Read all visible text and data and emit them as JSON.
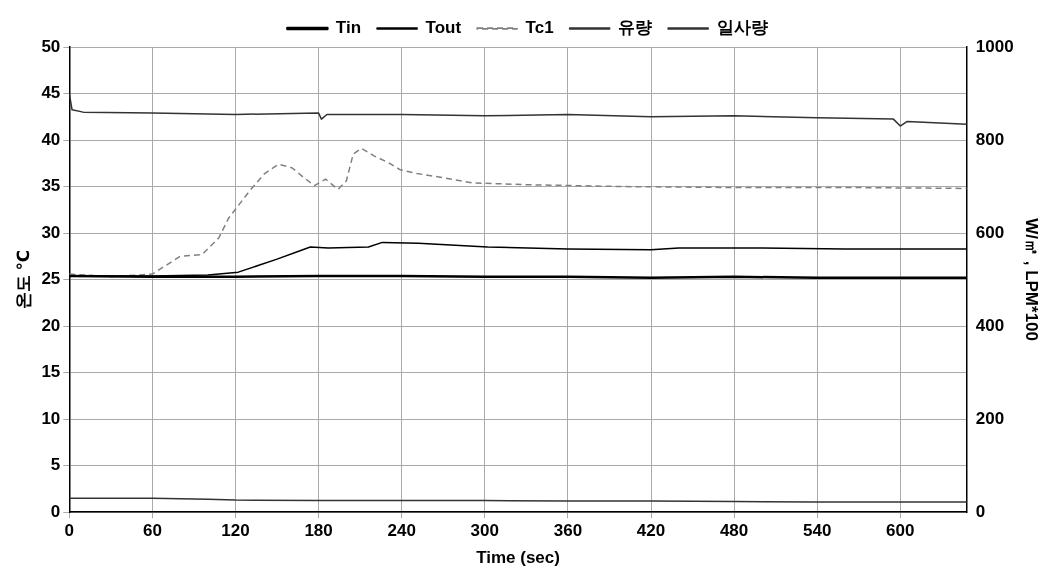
{
  "chart_data": {
    "type": "line",
    "xlabel": "Time (sec)",
    "ylabel": "온도 ℃",
    "y2label": "W/㎡ , LPM*100",
    "xlim": [
      0,
      648
    ],
    "xticks": [
      0,
      60,
      120,
      180,
      240,
      300,
      360,
      420,
      480,
      540,
      600
    ],
    "ylim": [
      0,
      50
    ],
    "yticks": [
      0,
      5,
      10,
      15,
      20,
      25,
      30,
      35,
      40,
      45,
      50
    ],
    "y2lim": [
      0,
      1000
    ],
    "y2ticks": [
      0,
      200,
      400,
      600,
      800,
      1000
    ],
    "grid": true,
    "legend": "top",
    "marker": "none",
    "series": [
      {
        "name": "Tin",
        "color": "#000000",
        "line_style": "solid",
        "x": [
          0,
          60,
          120,
          180,
          240,
          300,
          360,
          420,
          480,
          540,
          600,
          648
        ],
        "values": [
          25.4,
          25.3,
          25.3,
          25.4,
          25.4,
          25.3,
          25.3,
          25.2,
          25.3,
          25.2,
          25.2,
          25.2
        ]
      },
      {
        "name": "Tout",
        "color": "#000000",
        "line_style": "solid",
        "x": [
          0,
          60,
          100,
          122,
          150,
          174,
          187,
          216,
          226,
          252,
          302,
          360,
          420,
          440,
          500,
          560,
          648
        ],
        "values": [
          25.4,
          25.4,
          25.5,
          25.8,
          27.2,
          28.5,
          28.4,
          28.5,
          29.0,
          28.9,
          28.5,
          28.3,
          28.2,
          28.4,
          28.4,
          28.3,
          28.3
        ]
      },
      {
        "name": "Tc1",
        "color": "#808080",
        "line_style": "dashed",
        "x": [
          0,
          30,
          60,
          80,
          96,
          108,
          115,
          130,
          141,
          151,
          161,
          169,
          177,
          185,
          194,
          200,
          205,
          211,
          220,
          230,
          239,
          251,
          268,
          291,
          330,
          400,
          480,
          560,
          648
        ],
        "values": [
          25.6,
          25.3,
          25.6,
          27.5,
          27.7,
          29.5,
          31.6,
          34.5,
          36.4,
          37.4,
          37.0,
          36.0,
          35.1,
          35.8,
          34.7,
          35.6,
          38.5,
          39.1,
          38.3,
          37.6,
          36.8,
          36.4,
          36.0,
          35.4,
          35.2,
          35.0,
          34.9,
          34.9,
          34.8
        ]
      },
      {
        "name": "유량",
        "color": "#333333",
        "line_style": "solid",
        "axis": "y2",
        "x": [
          0,
          60,
          100,
          120,
          180,
          240,
          300,
          360,
          420,
          480,
          540,
          600,
          648
        ],
        "values": [
          30,
          30,
          28,
          26,
          25,
          25,
          25,
          24,
          24,
          23,
          22,
          22,
          22
        ]
      },
      {
        "name": "일사량",
        "color": "#333333",
        "line_style": "solid",
        "axis": "y2",
        "x": [
          0,
          2,
          10,
          60,
          120,
          180,
          182,
          186,
          240,
          300,
          360,
          420,
          480,
          540,
          595,
          600,
          605,
          648
        ],
        "values": [
          900,
          865,
          860,
          858,
          855,
          858,
          845,
          855,
          855,
          852,
          855,
          850,
          852,
          848,
          845,
          830,
          840,
          834
        ]
      }
    ]
  }
}
